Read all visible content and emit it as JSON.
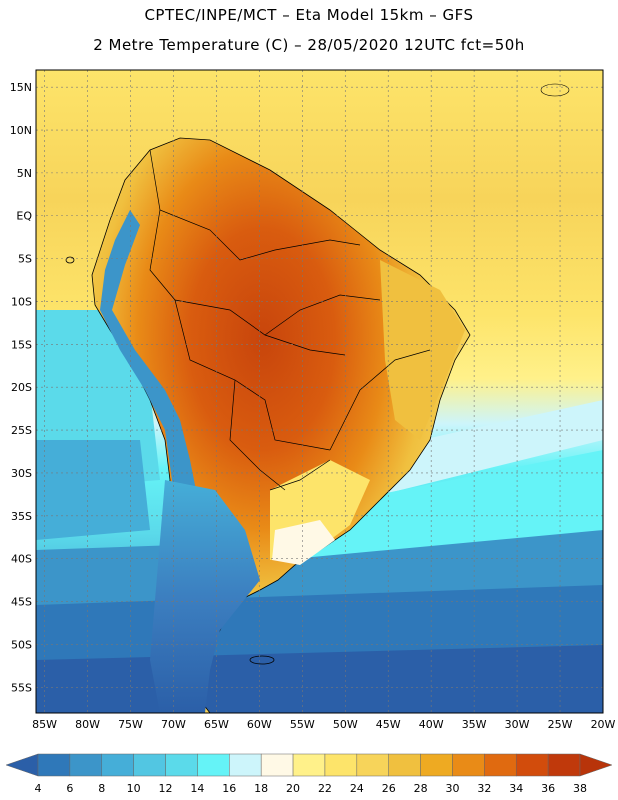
{
  "header": {
    "line1": "CPTEC/INPE/MCT –  Eta Model 15km – GFS",
    "line2": "2 Metre Temperature (C) – 28/05/2020 12UTC fct=50h"
  },
  "map": {
    "lat_ticks": [
      "15N",
      "10N",
      "5N",
      "EQ",
      "5S",
      "10S",
      "15S",
      "20S",
      "25S",
      "30S",
      "35S",
      "40S",
      "45S",
      "50S",
      "55S"
    ],
    "lon_ticks": [
      "85W",
      "80W",
      "75W",
      "70W",
      "65W",
      "60W",
      "55W",
      "50W",
      "45W",
      "40W",
      "35W",
      "30W",
      "25W",
      "20W"
    ],
    "lat_values": [
      15,
      10,
      5,
      0,
      -5,
      -10,
      -15,
      -20,
      -25,
      -30,
      -35,
      -40,
      -45,
      -50,
      -55
    ],
    "lon_values": [
      -85,
      -80,
      -75,
      -70,
      -65,
      -60,
      -55,
      -50,
      -45,
      -40,
      -35,
      -30,
      -25,
      -20
    ],
    "lat_range": [
      -58,
      17
    ],
    "lon_range": [
      -86,
      -20
    ],
    "grid": true
  },
  "colorbar": {
    "labels": [
      "4",
      "6",
      "8",
      "10",
      "12",
      "14",
      "16",
      "18",
      "20",
      "22",
      "24",
      "26",
      "28",
      "30",
      "32",
      "34",
      "36",
      "38"
    ],
    "colors": [
      "#2b5fa8",
      "#2f78b9",
      "#3c95c9",
      "#45aed8",
      "#52c6e2",
      "#5bdaea",
      "#65f3f7",
      "#cdf5fb",
      "#fff9e6",
      "#fff18a",
      "#fde46a",
      "#f7d45a",
      "#f0c03f",
      "#eeaa22",
      "#e98b17",
      "#e06a10",
      "#d24c0c",
      "#c0390b",
      "#b8340a"
    ]
  }
}
